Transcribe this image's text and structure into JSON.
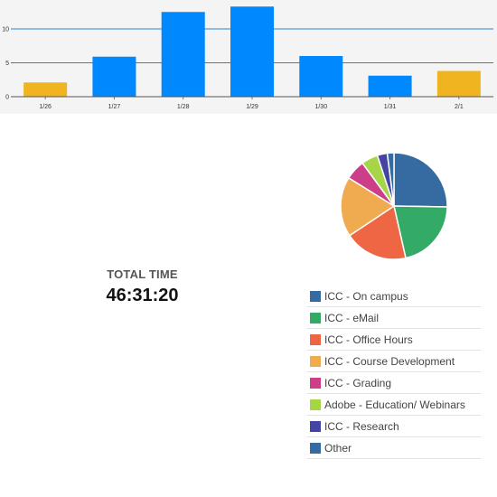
{
  "colors": {
    "bar": "#0088ff",
    "bar_highlight": "#f0b420",
    "gridline": "#2a7fd8"
  },
  "chart_data": [
    {
      "type": "bar",
      "categories": [
        "1/26",
        "1/27",
        "1/28",
        "1/29",
        "1/30",
        "1/31",
        "2/1"
      ],
      "values": [
        2.1,
        5.9,
        12.5,
        13.3,
        6.0,
        3.1,
        3.8
      ],
      "highlighted": [
        "1/26",
        "2/1"
      ],
      "ylim": [
        0,
        14
      ],
      "yticks": [
        0,
        5,
        10
      ],
      "grid": true
    },
    {
      "type": "pie",
      "labels": [
        "ICC - On campus",
        "ICC - eMail",
        "ICC - Office Hours",
        "ICC - Course Development",
        "ICC - Grading",
        "Adobe - Education/ Webinars",
        "ICC - Research",
        "Other"
      ],
      "values": [
        25,
        21,
        19,
        18,
        6,
        5,
        3,
        2
      ],
      "colors": [
        "#356ba0",
        "#33aa66",
        "#ee6644",
        "#f0aa50",
        "#cc3f88",
        "#a6d648",
        "#4444a4",
        "#356ba0"
      ]
    }
  ],
  "summary": {
    "label": "TOTAL TIME",
    "value": "46:31:20"
  },
  "legend": {
    "items": [
      {
        "label": "ICC - On campus",
        "color": "#356ba0"
      },
      {
        "label": "ICC - eMail",
        "color": "#33aa66"
      },
      {
        "label": "ICC - Office Hours",
        "color": "#ee6644"
      },
      {
        "label": "ICC - Course Development",
        "color": "#f0aa50"
      },
      {
        "label": "ICC - Grading",
        "color": "#cc3f88"
      },
      {
        "label": "Adobe - Education/ Webinars",
        "color": "#a6d648"
      },
      {
        "label": "ICC - Research",
        "color": "#4444a4"
      },
      {
        "label": "Other",
        "color": "#356ba0"
      }
    ]
  }
}
